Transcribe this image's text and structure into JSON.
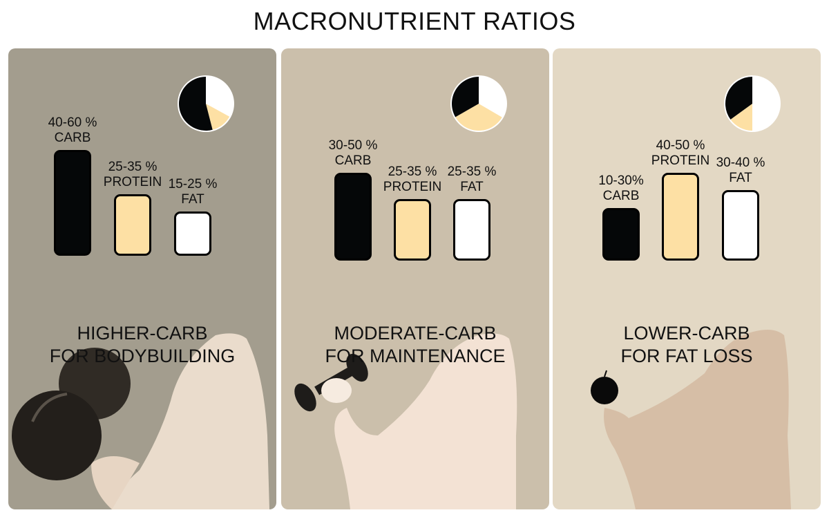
{
  "title": "MACRONUTRIENT RATIOS",
  "colors": {
    "carb": "#050708",
    "protein": "#fde0a4",
    "fat": "#ffffff"
  },
  "panels": [
    {
      "headline_line1": "HIGHER-CARB",
      "headline_line2": "FOR BODYBUILDING",
      "background": "#a39d8e",
      "illustration": "arm-with-large-dumbbell"
    },
    {
      "headline_line1": "MODERATE-CARB",
      "headline_line2": "FOR MAINTENANCE",
      "background": "#cbbfab",
      "illustration": "arm-with-small-dumbbell"
    },
    {
      "headline_line1": "LOWER-CARB",
      "headline_line2": "FOR FAT LOSS",
      "background": "#e3d8c4",
      "illustration": "arm-holding-apple"
    }
  ],
  "chart_data": [
    {
      "type": "bar",
      "categories": [
        "CARB",
        "PROTEIN",
        "FAT"
      ],
      "labels": [
        "40-60 %",
        "25-35 %",
        "15-25 %"
      ],
      "ranges": [
        [
          40,
          60
        ],
        [
          25,
          35
        ],
        [
          15,
          25
        ]
      ],
      "pie": {
        "type": "pie",
        "slices": [
          {
            "category": "CARB",
            "value": 54
          },
          {
            "category": "PROTEIN",
            "value": 13
          },
          {
            "category": "FAT",
            "value": 33
          }
        ]
      }
    },
    {
      "type": "bar",
      "categories": [
        "CARB",
        "PROTEIN",
        "FAT"
      ],
      "labels": [
        "30-50 %",
        "25-35 %",
        "25-35 %"
      ],
      "ranges": [
        [
          30,
          50
        ],
        [
          25,
          35
        ],
        [
          25,
          35
        ]
      ],
      "pie": {
        "type": "pie",
        "slices": [
          {
            "category": "CARB",
            "value": 33.3
          },
          {
            "category": "PROTEIN",
            "value": 33.3
          },
          {
            "category": "FAT",
            "value": 33.4
          }
        ]
      }
    },
    {
      "type": "bar",
      "categories": [
        "CARB",
        "PROTEIN",
        "FAT"
      ],
      "labels": [
        "10-30%",
        "40-50 %",
        "30-40 %"
      ],
      "ranges": [
        [
          10,
          30
        ],
        [
          40,
          50
        ],
        [
          30,
          40
        ]
      ],
      "pie": {
        "type": "pie",
        "slices": [
          {
            "category": "CARB",
            "value": 35
          },
          {
            "category": "PROTEIN",
            "value": 15
          },
          {
            "category": "FAT",
            "value": 50
          }
        ]
      }
    }
  ]
}
